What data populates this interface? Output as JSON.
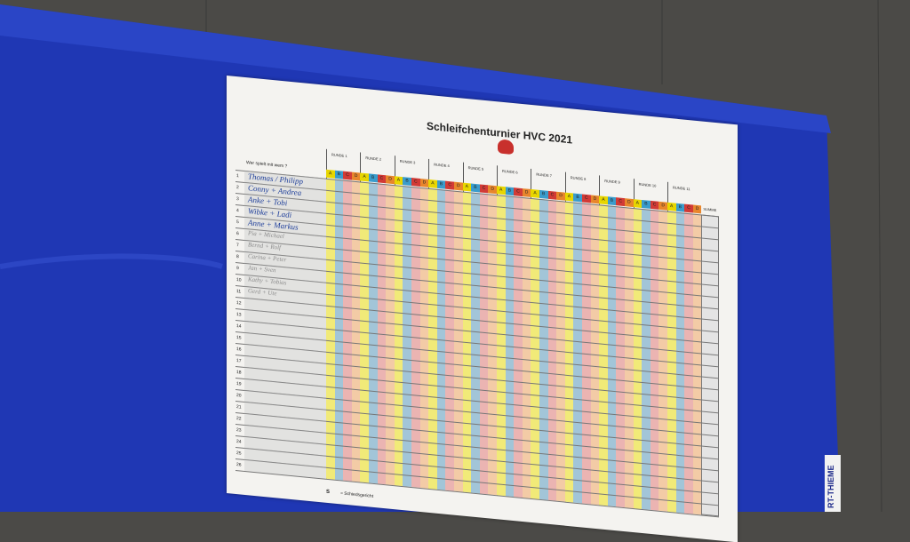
{
  "poster": {
    "title": "Schleifchenturnier HVC 2021",
    "question": "Wer spielt mit wem ?",
    "rounds": [
      "RUNDE 1",
      "RUNDE 2",
      "RUNDE 3",
      "RUNDE 4",
      "RUNDE 5",
      "RUNDE 6",
      "RUNDE 7",
      "RUNDE 8",
      "RUNDE 9",
      "RUNDE 10",
      "RUNDE 11"
    ],
    "team_letters": [
      "A",
      "B",
      "C",
      "D"
    ],
    "sum_label": "SUMME",
    "rows": [
      {
        "number": 1,
        "name": "Thomas / Philipp"
      },
      {
        "number": 2,
        "name": "Conny + Andrea"
      },
      {
        "number": 3,
        "name": "Anke + Tobi"
      },
      {
        "number": 4,
        "name": "Wibke + Ladi"
      },
      {
        "number": 5,
        "name": "Anne + Markus"
      },
      {
        "number": 6,
        "name": "Pia + Michael"
      },
      {
        "number": 7,
        "name": "Bernd + Rolf"
      },
      {
        "number": 8,
        "name": "Carina + Peter"
      },
      {
        "number": 9,
        "name": "Jan + Sven"
      },
      {
        "number": 10,
        "name": "Kathy + Tobias"
      },
      {
        "number": 11,
        "name": "Gerd + Ute"
      },
      {
        "number": 12
      },
      {
        "number": 13
      },
      {
        "number": 14
      },
      {
        "number": 15
      },
      {
        "number": 16
      },
      {
        "number": 17
      },
      {
        "number": 18
      },
      {
        "number": 19
      },
      {
        "number": 20
      },
      {
        "number": 21
      },
      {
        "number": 22
      },
      {
        "number": 23
      },
      {
        "number": 24
      },
      {
        "number": 25
      },
      {
        "number": 26
      }
    ],
    "legend": {
      "symbol": "S",
      "text": "= Schiedsgericht"
    },
    "banner": "RT-THIEME"
  }
}
